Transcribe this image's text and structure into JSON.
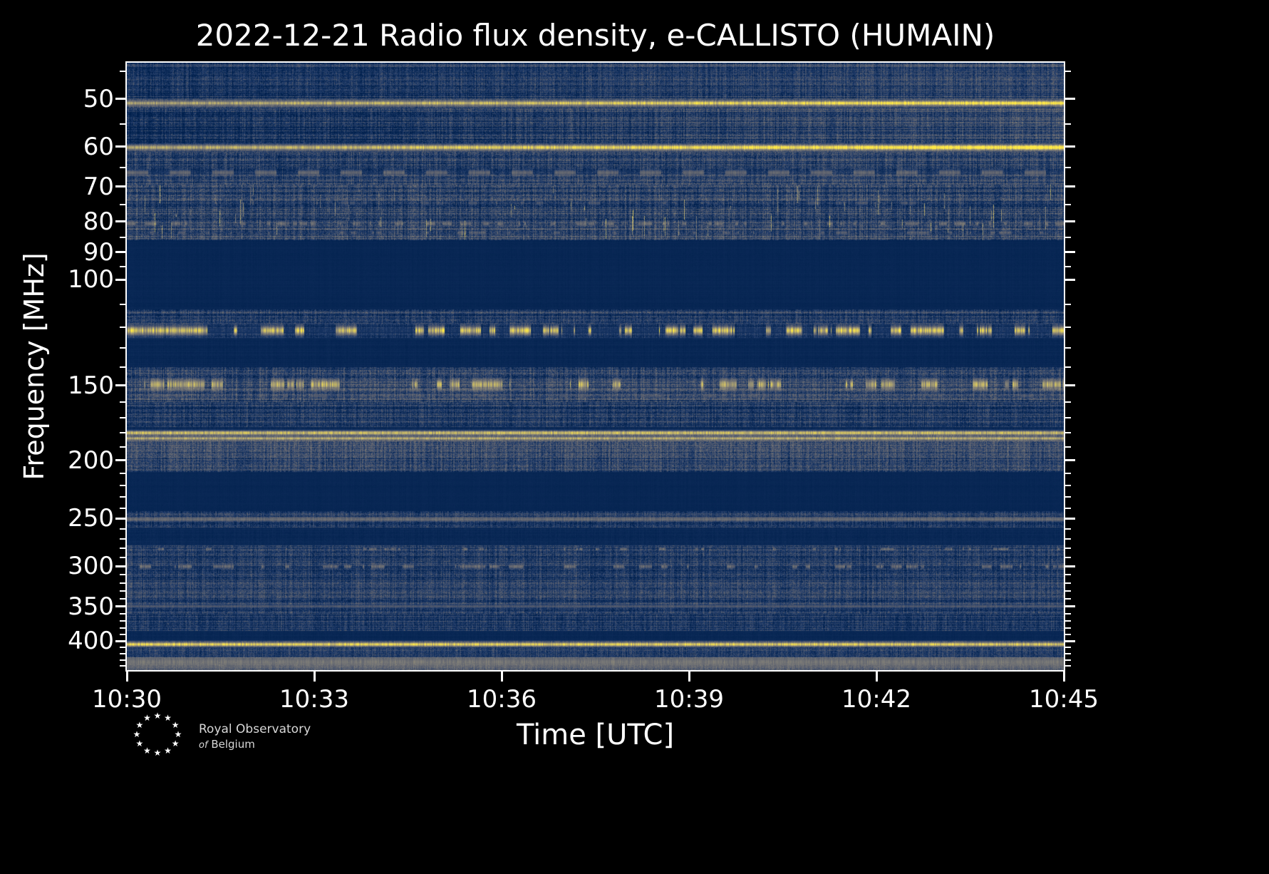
{
  "page": {
    "background": "#000000",
    "text_color": "#ffffff"
  },
  "chart_data": {
    "type": "heatmap",
    "subtype": "radio_spectrogram",
    "title": "2022-12-21 Radio flux density, e-CALLISTO (HUMAIN)",
    "date": "2022-12-21",
    "network": "e-CALLISTO",
    "station": "HUMAIN",
    "xlabel": "Time [UTC]",
    "ylabel": "Frequency [MHz]",
    "x_range_minutes": [
      0,
      15
    ],
    "x_ticks": [
      {
        "label": "10:30",
        "minutes": 0
      },
      {
        "label": "10:33",
        "minutes": 3
      },
      {
        "label": "10:36",
        "minutes": 6
      },
      {
        "label": "10:39",
        "minutes": 9
      },
      {
        "label": "10:42",
        "minutes": 12
      },
      {
        "label": "10:45",
        "minutes": 15
      }
    ],
    "y_scale": "log",
    "y_axis_inverted": true,
    "freq_range_mhz": [
      43.5,
      447
    ],
    "y_ticks_mhz": [
      50,
      60,
      70,
      80,
      90,
      100,
      150,
      200,
      250,
      300,
      350,
      400
    ],
    "y_minor_ticks_mhz": [
      45,
      55,
      65,
      75,
      85,
      95,
      110,
      120,
      130,
      140,
      160,
      170,
      180,
      190,
      210,
      220,
      230,
      240,
      260,
      270,
      280,
      290,
      310,
      320,
      330,
      340,
      360,
      370,
      380,
      390,
      410,
      420,
      430,
      440
    ],
    "colormap": {
      "name": "cividis",
      "stops": [
        [
          0,
          "#00204d"
        ],
        [
          0.2,
          "#233e6c"
        ],
        [
          0.4,
          "#575d6d"
        ],
        [
          0.6,
          "#7d7c78"
        ],
        [
          0.8,
          "#bcaf6f"
        ],
        [
          1,
          "#ffe945"
        ]
      ]
    },
    "render_seed": 20221221,
    "bands": [
      {
        "f_mhz": [
          43.5,
          50.0
        ],
        "base": 0.2,
        "noise": 0.3,
        "trend": 0.12
      },
      {
        "f_mhz": [
          50.0,
          51.8
        ],
        "base": 0.24,
        "noise": 0.24
      },
      {
        "f_mhz": [
          51.8,
          59.3
        ],
        "base": 0.21,
        "noise": 0.32,
        "trend": 0.18
      },
      {
        "f_mhz": [
          59.3,
          61.2
        ],
        "base": 0.24,
        "noise": 0.24,
        "trend": 0.1
      },
      {
        "f_mhz": [
          61.2,
          69.5
        ],
        "base": 0.24,
        "noise": 0.33,
        "trend": 0.05
      },
      {
        "f_mhz": [
          69.5,
          86.0
        ],
        "base": 0.23,
        "noise": 0.36
      },
      {
        "f_mhz": [
          86.0,
          112.0
        ],
        "base": 0.045,
        "noise": 0.02
      },
      {
        "f_mhz": [
          112.0,
          118.5
        ],
        "base": 0.2,
        "noise": 0.3
      },
      {
        "f_mhz": [
          118.5,
          125.0
        ],
        "base": 0.13,
        "noise": 0.22
      },
      {
        "f_mhz": [
          125.0,
          140.0
        ],
        "base": 0.05,
        "noise": 0.03
      },
      {
        "f_mhz": [
          140.0,
          160.0
        ],
        "base": 0.24,
        "noise": 0.34
      },
      {
        "f_mhz": [
          160.0,
          176.0
        ],
        "base": 0.19,
        "noise": 0.3
      },
      {
        "f_mhz": [
          176.0,
          178.5
        ],
        "base": 0.07,
        "noise": 0.06
      },
      {
        "f_mhz": [
          178.5,
          186.0
        ],
        "base": 0.3,
        "noise": 0.28
      },
      {
        "f_mhz": [
          186.0,
          209.0
        ],
        "base": 0.24,
        "noise": 0.33
      },
      {
        "f_mhz": [
          209.0,
          243.0
        ],
        "base": 0.045,
        "noise": 0.02
      },
      {
        "f_mhz": [
          243.0,
          259.0
        ],
        "base": 0.2,
        "noise": 0.28
      },
      {
        "f_mhz": [
          259.0,
          277.0
        ],
        "base": 0.055,
        "noise": 0.04
      },
      {
        "f_mhz": [
          277.0,
          360.0
        ],
        "base": 0.2,
        "noise": 0.3
      },
      {
        "f_mhz": [
          360.0,
          385.0
        ],
        "base": 0.17,
        "noise": 0.27
      },
      {
        "f_mhz": [
          385.0,
          399.5
        ],
        "base": 0.05,
        "noise": 0.03
      },
      {
        "f_mhz": [
          399.5,
          410.0
        ],
        "base": 0.16,
        "noise": 0.22
      },
      {
        "f_mhz": [
          410.0,
          425.0
        ],
        "base": 0.19,
        "noise": 0.27
      },
      {
        "f_mhz": [
          425.0,
          447.1
        ],
        "base": 0.42,
        "noise": 0.2
      }
    ],
    "spectral_lines": [
      {
        "f_mhz": 50.8,
        "df_mhz": 0.35,
        "intensity": 0.88,
        "mode": "steady",
        "trend": 0.35
      },
      {
        "f_mhz": 60.2,
        "df_mhz": 0.42,
        "intensity": 0.92,
        "mode": "steady",
        "trend": 0.35
      },
      {
        "f_mhz": 66.3,
        "df_mhz": 0.5,
        "intensity": 0.48,
        "mode": "dashed",
        "period": 30
      },
      {
        "f_mhz": 74.5,
        "df_mhz": 0.4,
        "intensity": 0.4,
        "mode": "bursty",
        "p": 0.15,
        "flip": 0.25
      },
      {
        "f_mhz": 80.6,
        "df_mhz": 0.45,
        "intensity": 0.55,
        "mode": "bursty",
        "p": 0.3,
        "flip": 0.2
      },
      {
        "f_mhz": 83.5,
        "df_mhz": 0.4,
        "intensity": 0.45,
        "mode": "bursty",
        "p": 0.2,
        "flip": 0.25
      },
      {
        "f_mhz": 121.5,
        "df_mhz": 1.5,
        "intensity": 0.95,
        "mode": "bursty",
        "p": 0.5,
        "flip": 0.12
      },
      {
        "f_mhz": 149.5,
        "df_mhz": 2.0,
        "intensity": 0.85,
        "mode": "bursty",
        "p": 0.32,
        "flip": 0.12
      },
      {
        "f_mhz": 156.0,
        "df_mhz": 0.8,
        "intensity": 0.4,
        "mode": "bursty",
        "p": 0.2,
        "flip": 0.2
      },
      {
        "f_mhz": 180.0,
        "df_mhz": 1.0,
        "intensity": 0.85,
        "mode": "steady"
      },
      {
        "f_mhz": 183.8,
        "df_mhz": 0.9,
        "intensity": 0.78,
        "mode": "steady"
      },
      {
        "f_mhz": 250.5,
        "df_mhz": 1.3,
        "intensity": 0.5,
        "mode": "steady"
      },
      {
        "f_mhz": 281.0,
        "df_mhz": 0.8,
        "intensity": 0.6,
        "mode": "bursty",
        "p": 0.1,
        "flip": 0.3
      },
      {
        "f_mhz": 300.5,
        "df_mhz": 1.6,
        "intensity": 0.55,
        "mode": "bursty",
        "p": 0.45,
        "flip": 0.12
      },
      {
        "f_mhz": 350.0,
        "df_mhz": 1.5,
        "intensity": 0.38,
        "mode": "steady"
      },
      {
        "f_mhz": 405.0,
        "df_mhz": 2.5,
        "intensity": 0.9,
        "mode": "steady",
        "trend": -0.05
      },
      {
        "f_mhz": 433.0,
        "df_mhz": 4.0,
        "intensity": 0.55,
        "mode": "steady"
      }
    ],
    "bursts": {
      "count": 90,
      "f_range_mhz": [
        69.5,
        86
      ],
      "intensity": 0.8
    }
  },
  "footer": {
    "logo": {
      "star_glyph": "★",
      "star_count": 12,
      "line1": "Royal Observatory",
      "line2_italic": "of",
      "line2_rest": "Belgium"
    }
  }
}
